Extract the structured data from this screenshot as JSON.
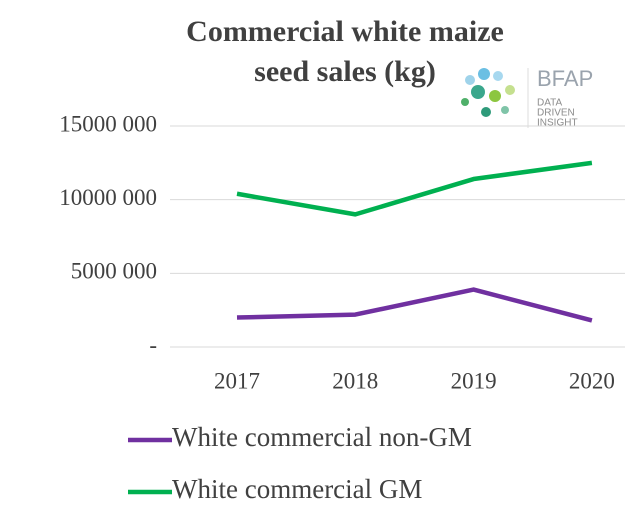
{
  "chart_data": {
    "type": "line",
    "title": "Commercial white maize seed sales (kg)",
    "categories": [
      "2017",
      "2018",
      "2019",
      "2020"
    ],
    "series": [
      {
        "name": "White commercial non-GM",
        "color": "#7030a0",
        "values": [
          2000000,
          2200000,
          3900000,
          1800000
        ]
      },
      {
        "name": "White commercial GM",
        "color": "#00b050",
        "values": [
          10400000,
          9000000,
          11400000,
          12500000
        ]
      }
    ],
    "ylim": [
      0,
      15000000
    ],
    "yticks": [
      {
        "value": 0,
        "label": "-"
      },
      {
        "value": 5000000,
        "label": "5000 000"
      },
      {
        "value": 10000000,
        "label": "10000 000"
      },
      {
        "value": 15000000,
        "label": "15000 000"
      }
    ],
    "grid": true
  },
  "logo": {
    "name": "BFAP",
    "tagline": [
      "DATA",
      "DRIVEN",
      "INSIGHT"
    ]
  }
}
